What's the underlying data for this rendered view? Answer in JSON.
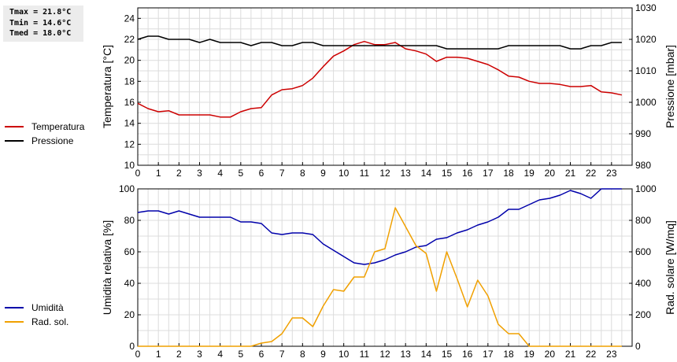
{
  "stats": {
    "tmax": "Tmax = 21.8°C",
    "tmin": "Tmin = 14.6°C",
    "tmed": "Tmed = 18.0°C"
  },
  "legend_top": [
    {
      "label": "Temperatura",
      "color": "#cc0000"
    },
    {
      "label": "Pressione",
      "color": "#000000"
    }
  ],
  "legend_bottom": [
    {
      "label": "Umidità",
      "color": "#0000aa"
    },
    {
      "label": "Rad. sol.",
      "color": "#f0a000"
    }
  ],
  "chart_data": [
    {
      "type": "line",
      "xlim": [
        0,
        24
      ],
      "xticks": [
        0,
        1,
        2,
        3,
        4,
        5,
        6,
        7,
        8,
        9,
        10,
        11,
        12,
        13,
        14,
        15,
        16,
        17,
        18,
        19,
        20,
        21,
        22,
        23
      ],
      "ylabel": "Temperatura [°C]",
      "ylim": [
        10,
        25
      ],
      "yticks": [
        10,
        12,
        14,
        16,
        18,
        20,
        22,
        24
      ],
      "y2label": "Pressione [mbar]",
      "y2lim": [
        980,
        1030
      ],
      "y2ticks": [
        980,
        990,
        1000,
        1010,
        1020,
        1030
      ],
      "grid": true,
      "series": [
        {
          "name": "Temperatura",
          "axis": "left",
          "color": "#cc0000",
          "x": [
            0,
            0.5,
            1,
            1.5,
            2,
            2.5,
            3,
            3.5,
            4,
            4.5,
            5,
            5.5,
            6,
            6.5,
            7,
            7.5,
            8,
            8.5,
            9,
            9.5,
            10,
            10.5,
            11,
            11.5,
            12,
            12.5,
            13,
            13.5,
            14,
            14.5,
            15,
            15.5,
            16,
            16.5,
            17,
            17.5,
            18,
            18.5,
            19,
            19.5,
            20,
            20.5,
            21,
            21.5,
            22,
            22.5,
            23,
            23.5
          ],
          "y": [
            15.9,
            15.4,
            15.1,
            15.2,
            14.8,
            14.8,
            14.8,
            14.8,
            14.6,
            14.6,
            15.1,
            15.4,
            15.5,
            16.7,
            17.2,
            17.3,
            17.6,
            18.3,
            19.4,
            20.4,
            20.9,
            21.5,
            21.8,
            21.5,
            21.5,
            21.7,
            21.1,
            20.9,
            20.6,
            19.9,
            20.3,
            20.3,
            20.2,
            19.9,
            19.6,
            19.1,
            18.5,
            18.4,
            18.0,
            17.8,
            17.8,
            17.7,
            17.5,
            17.5,
            17.6,
            17.0,
            16.9,
            16.7
          ]
        },
        {
          "name": "Pressione",
          "axis": "right",
          "color": "#000000",
          "x": [
            0,
            0.5,
            1,
            1.5,
            2,
            2.5,
            3,
            3.5,
            4,
            4.5,
            5,
            5.5,
            6,
            6.5,
            7,
            7.5,
            8,
            8.5,
            9,
            9.5,
            10,
            10.5,
            11,
            11.5,
            12,
            12.5,
            13,
            13.5,
            14,
            14.5,
            15,
            15.5,
            16,
            16.5,
            17,
            17.5,
            18,
            18.5,
            19,
            19.5,
            20,
            20.5,
            21,
            21.5,
            22,
            22.5,
            23,
            23.5
          ],
          "y": [
            1020,
            1021,
            1021,
            1020,
            1020,
            1020,
            1019,
            1020,
            1019,
            1019,
            1019,
            1018,
            1019,
            1019,
            1018,
            1018,
            1019,
            1019,
            1018,
            1018,
            1018,
            1018,
            1018,
            1018,
            1018,
            1018,
            1018,
            1018,
            1018,
            1018,
            1017,
            1017,
            1017,
            1017,
            1017,
            1017,
            1018,
            1018,
            1018,
            1018,
            1018,
            1018,
            1017,
            1017,
            1018,
            1018,
            1019,
            1019
          ]
        }
      ]
    },
    {
      "type": "line",
      "xlim": [
        0,
        24
      ],
      "xticks": [
        0,
        1,
        2,
        3,
        4,
        5,
        6,
        7,
        8,
        9,
        10,
        11,
        12,
        13,
        14,
        15,
        16,
        17,
        18,
        19,
        20,
        21,
        22,
        23
      ],
      "ylabel": "Umidità relativa [%]",
      "ylim": [
        0,
        100
      ],
      "yticks": [
        0,
        20,
        40,
        60,
        80,
        100
      ],
      "y2label": "Rad. solare [W/mq]",
      "y2lim": [
        0,
        1000
      ],
      "y2ticks": [
        0,
        200,
        400,
        600,
        800,
        1000
      ],
      "grid": true,
      "series": [
        {
          "name": "Umidità",
          "axis": "left",
          "color": "#0000aa",
          "x": [
            0,
            0.5,
            1,
            1.5,
            2,
            2.5,
            3,
            3.5,
            4,
            4.5,
            5,
            5.5,
            6,
            6.5,
            7,
            7.5,
            8,
            8.5,
            9,
            9.5,
            10,
            10.5,
            11,
            11.5,
            12,
            12.5,
            13,
            13.5,
            14,
            14.5,
            15,
            15.5,
            16,
            16.5,
            17,
            17.5,
            18,
            18.5,
            19,
            19.5,
            20,
            20.5,
            21,
            21.5,
            22,
            22.5,
            23,
            23.5
          ],
          "y": [
            85,
            86,
            86,
            84,
            86,
            84,
            82,
            82,
            82,
            82,
            79,
            79,
            78,
            72,
            71,
            72,
            72,
            71,
            65,
            61,
            57,
            53,
            52,
            53,
            55,
            58,
            60,
            63,
            64,
            68,
            69,
            72,
            74,
            77,
            79,
            82,
            87,
            87,
            90,
            93,
            94,
            96,
            99,
            97,
            94,
            100,
            100,
            100
          ]
        },
        {
          "name": "Rad. sol.",
          "axis": "right",
          "color": "#f0a000",
          "x": [
            0,
            0.5,
            1,
            1.5,
            2,
            2.5,
            3,
            3.5,
            4,
            4.5,
            5,
            5.5,
            6,
            6.5,
            7,
            7.5,
            8,
            8.5,
            9,
            9.5,
            10,
            10.5,
            11,
            11.5,
            12,
            12.5,
            13,
            13.5,
            14,
            14.5,
            15,
            15.5,
            16,
            16.5,
            17,
            17.5,
            18,
            18.5,
            19,
            19.5,
            20,
            20.5,
            21,
            21.5,
            22,
            22.5,
            23,
            23.5
          ],
          "y": [
            0,
            0,
            0,
            0,
            0,
            0,
            0,
            0,
            0,
            0,
            0,
            0,
            20,
            30,
            80,
            180,
            180,
            125,
            255,
            360,
            350,
            440,
            440,
            600,
            620,
            880,
            760,
            640,
            590,
            350,
            600,
            430,
            250,
            420,
            320,
            140,
            80,
            80,
            0,
            0,
            0,
            0,
            0,
            0,
            0,
            0,
            0,
            0
          ]
        }
      ]
    }
  ]
}
